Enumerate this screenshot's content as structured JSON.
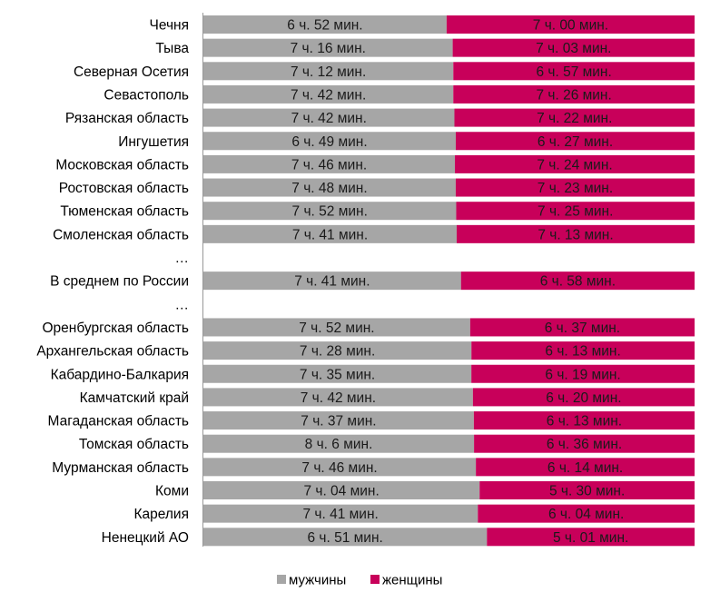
{
  "chart_data": {
    "type": "bar",
    "stacked": "100%",
    "orientation": "horizontal",
    "title": "",
    "colors": {
      "men": "#a6a6a6",
      "women": "#c8005a",
      "axis": "#999999"
    },
    "series": [
      {
        "name": "мужчины",
        "key": "men"
      },
      {
        "name": "женщины",
        "key": "women"
      }
    ],
    "legend": {
      "position": "bottom",
      "men_label": "мужчины",
      "women_label": "женщины"
    },
    "rows": [
      {
        "kind": "bar",
        "category": "Чечня",
        "men_label": "6 ч. 52 мин.",
        "women_label": "7 ч. 00 мин.",
        "men_min": 412,
        "women_min": 420
      },
      {
        "kind": "bar",
        "category": "Тыва",
        "men_label": "7 ч. 16 мин.",
        "women_label": "7 ч. 03 мин.",
        "men_min": 436,
        "women_min": 423
      },
      {
        "kind": "bar",
        "category": "Северная Осетия",
        "men_label": "7 ч. 12 мин.",
        "women_label": "6 ч. 57 мин.",
        "men_min": 432,
        "women_min": 417
      },
      {
        "kind": "bar",
        "category": "Севастополь",
        "men_label": "7 ч. 42 мин.",
        "women_label": "7 ч. 26 мин.",
        "men_min": 462,
        "women_min": 446
      },
      {
        "kind": "bar",
        "category": "Рязанская область",
        "men_label": "7 ч. 42 мин.",
        "women_label": "7 ч. 22 мин.",
        "men_min": 462,
        "women_min": 442
      },
      {
        "kind": "bar",
        "category": "Ингушетия",
        "men_label": "6 ч. 49 мин.",
        "women_label": "6 ч. 27 мин.",
        "men_min": 409,
        "women_min": 387
      },
      {
        "kind": "bar",
        "category": "Московская область",
        "men_label": "7 ч. 46 мин.",
        "women_label": "7 ч. 24 мин.",
        "men_min": 466,
        "women_min": 444
      },
      {
        "kind": "bar",
        "category": "Ростовская область",
        "men_label": "7 ч. 48 мин.",
        "women_label": "7 ч. 23 мин.",
        "men_min": 468,
        "women_min": 443
      },
      {
        "kind": "bar",
        "category": "Тюменская область",
        "men_label": "7 ч. 52 мин.",
        "women_label": "7 ч. 25 мин.",
        "men_min": 472,
        "women_min": 445
      },
      {
        "kind": "bar",
        "category": "Смоленская область",
        "men_label": "7 ч. 41 мин.",
        "women_label": "7 ч. 13 мин.",
        "men_min": 461,
        "women_min": 433
      },
      {
        "kind": "gap",
        "category": "…"
      },
      {
        "kind": "bar",
        "category": "В среднем по России",
        "men_label": "7 ч. 41 мин.",
        "women_label": "6 ч. 58 мин.",
        "men_min": 461,
        "women_min": 418
      },
      {
        "kind": "gap",
        "category": "…"
      },
      {
        "kind": "bar",
        "category": "Оренбургская область",
        "men_label": "7 ч. 52 мин.",
        "women_label": "6 ч. 37 мин.",
        "men_min": 472,
        "women_min": 397
      },
      {
        "kind": "bar",
        "category": "Архангельская область",
        "men_label": "7 ч. 28 мин.",
        "women_label": "6 ч. 13 мин.",
        "men_min": 448,
        "women_min": 373
      },
      {
        "kind": "bar",
        "category": "Кабардино-Балкария",
        "men_label": "7 ч. 35 мин.",
        "women_label": "6 ч. 19 мин.",
        "men_min": 455,
        "women_min": 379
      },
      {
        "kind": "bar",
        "category": "Камчатский край",
        "men_label": "7 ч. 42 мин.",
        "women_label": "6 ч. 20 мин.",
        "men_min": 462,
        "women_min": 380
      },
      {
        "kind": "bar",
        "category": "Магаданская область",
        "men_label": "7 ч. 37 мин.",
        "women_label": "6 ч. 13 мин.",
        "men_min": 457,
        "women_min": 373
      },
      {
        "kind": "bar",
        "category": "Томская область",
        "men_label": "8 ч. 6 мин.",
        "women_label": "6 ч. 36 мин.",
        "men_min": 486,
        "women_min": 396
      },
      {
        "kind": "bar",
        "category": "Мурманская область",
        "men_label": "7 ч. 46 мин.",
        "women_label": "6 ч. 14 мин.",
        "men_min": 466,
        "women_min": 374
      },
      {
        "kind": "bar",
        "category": "Коми",
        "men_label": "7 ч. 04 мин.",
        "women_label": "5 ч. 30 мин.",
        "men_min": 424,
        "women_min": 330
      },
      {
        "kind": "bar",
        "category": "Карелия",
        "men_label": "7 ч. 41 мин.",
        "women_label": "6 ч. 04 мин.",
        "men_min": 461,
        "women_min": 364
      },
      {
        "kind": "bar",
        "category": "Ненецкий АО",
        "men_label": "6 ч. 51 мин.",
        "women_label": "5 ч. 01 мин.",
        "men_min": 411,
        "women_min": 301
      }
    ]
  }
}
